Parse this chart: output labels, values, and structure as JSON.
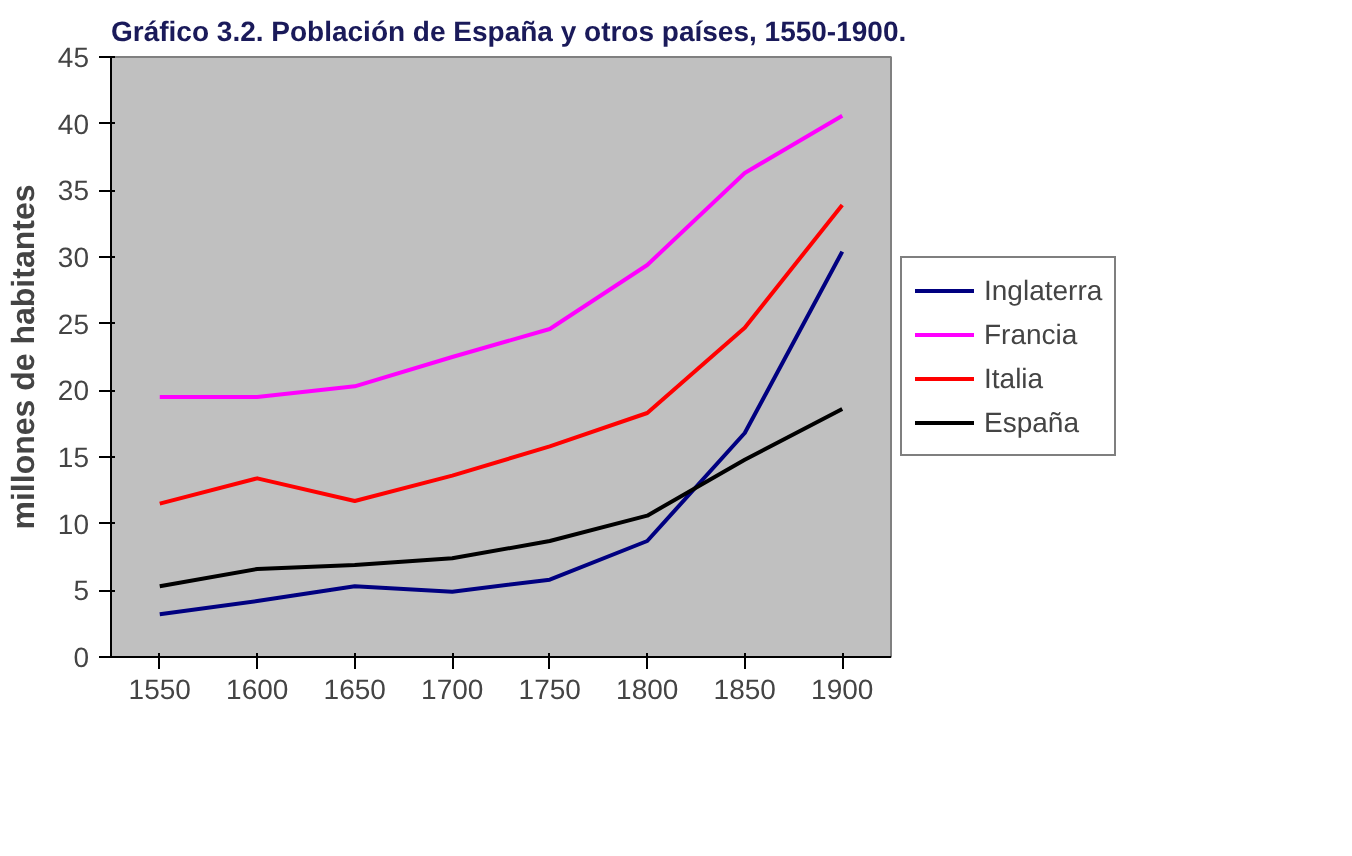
{
  "chart_data": {
    "type": "line",
    "title": "Gráfico 3.2. Población de España y otros países, 1550-1900.",
    "ylabel": "millones de habitantes",
    "categories": [
      "1550",
      "1600",
      "1650",
      "1700",
      "1750",
      "1800",
      "1850",
      "1900"
    ],
    "series": [
      {
        "name": "Inglaterra",
        "color": "#000080",
        "values": [
          3.2,
          4.2,
          5.3,
          4.9,
          5.8,
          8.7,
          16.8,
          30.4
        ]
      },
      {
        "name": "Francia",
        "color": "#ff00ff",
        "values": [
          19.5,
          19.5,
          20.3,
          22.5,
          24.6,
          29.4,
          36.3,
          40.6
        ]
      },
      {
        "name": "Italia",
        "color": "#ff0000",
        "values": [
          11.5,
          13.4,
          11.7,
          13.6,
          15.8,
          18.3,
          24.7,
          33.9
        ]
      },
      {
        "name": "España",
        "color": "#000000",
        "values": [
          5.3,
          6.6,
          6.9,
          7.4,
          8.7,
          10.6,
          14.8,
          18.6
        ]
      }
    ],
    "ylim": [
      0,
      45
    ],
    "yticks": [
      0,
      5,
      10,
      15,
      20,
      25,
      30,
      35,
      40,
      45
    ],
    "grid": false,
    "legend": "right",
    "marker": "none",
    "line_style": "solid"
  }
}
